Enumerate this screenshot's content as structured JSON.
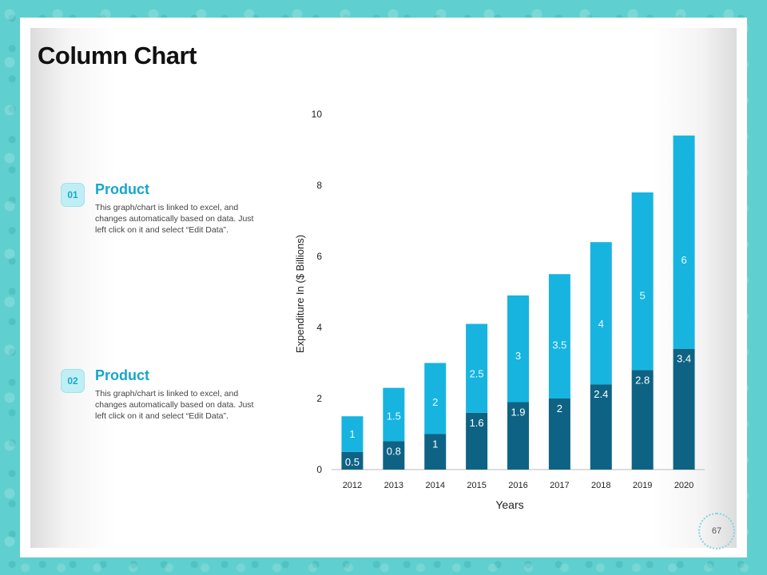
{
  "slide": {
    "title": "Column Chart",
    "page_number": "67"
  },
  "items": [
    {
      "badge": "01",
      "title": "Product",
      "description": "This graph/chart is linked to excel, and changes automatically based on data.  Just left click on it and select “Edit Data”."
    },
    {
      "badge": "02",
      "title": "Product",
      "description": "This graph/chart is linked to excel, and changes automatically based on data.  Just left click on it and select “Edit Data”."
    }
  ],
  "colors": {
    "series_bottom": "#0e6384",
    "series_top": "#17b4e0",
    "accent": "#17a6c9"
  },
  "chart_data": {
    "type": "bar",
    "stacked": true,
    "categories": [
      "2012",
      "2013",
      "2014",
      "2015",
      "2016",
      "2017",
      "2018",
      "2019",
      "2020"
    ],
    "series": [
      {
        "name": "Product 01",
        "values": [
          0.5,
          0.8,
          1,
          1.6,
          1.9,
          2,
          2.4,
          2.8,
          3.4
        ]
      },
      {
        "name": "Product 02",
        "values": [
          1,
          1.5,
          2,
          2.5,
          3,
          3.5,
          4,
          5,
          6
        ]
      }
    ],
    "title": "",
    "xlabel": "Years",
    "ylabel": "Expenditure In ($ Billions)",
    "ylim": [
      0,
      10
    ],
    "yticks": [
      "0",
      "2",
      "4",
      "6",
      "8",
      "10"
    ]
  }
}
